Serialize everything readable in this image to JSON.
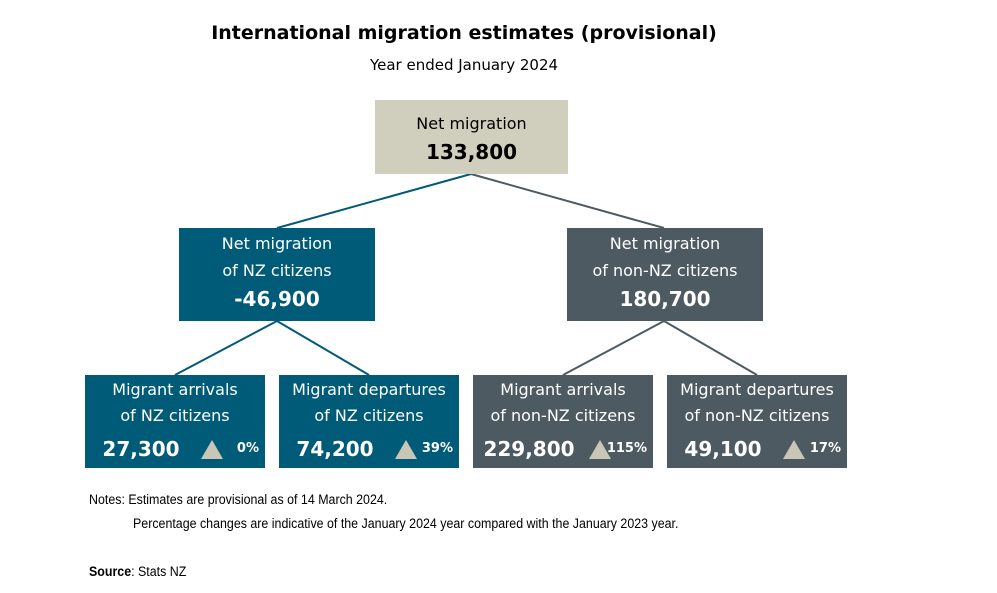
{
  "title": "International migration estimates (provisional)",
  "subtitle": "Year ended January 2024",
  "colors": {
    "nz": "#005B78",
    "non_nz": "#4E5A61",
    "top": "#D0CEBC",
    "increase_triangle": "#C9C6B5"
  },
  "top": {
    "label": "Net migration",
    "value": "133,800"
  },
  "mid": [
    {
      "label1": "Net migration",
      "label2": "of NZ citizens",
      "value": "-46,900"
    },
    {
      "label1": "Net migration",
      "label2": "of non-NZ citizens",
      "value": "180,700"
    }
  ],
  "bottom": [
    {
      "label1": "Migrant arrivals",
      "label2": "of NZ citizens",
      "value": "27,300",
      "change": "0%",
      "icon": "triangle-up-icon"
    },
    {
      "label1": "Migrant departures",
      "label2": "of NZ citizens",
      "value": "74,200",
      "change": "39%",
      "icon": "triangle-up-icon"
    },
    {
      "label1": "Migrant arrivals",
      "label2": "of non-NZ citizens",
      "value": "229,800",
      "change": "115%",
      "icon": "triangle-up-icon"
    },
    {
      "label1": "Migrant departures",
      "label2": "of non-NZ citizens",
      "value": "49,100",
      "change": "17%",
      "icon": "triangle-up-icon"
    }
  ],
  "notes": {
    "line1": "Notes: Estimates are provisional as of 14 March 2024.",
    "line2": "Percentage changes are indicative of the January 2024 year compared with the January 2023 year."
  },
  "source": {
    "label": "Source",
    "text": ": Stats NZ"
  }
}
